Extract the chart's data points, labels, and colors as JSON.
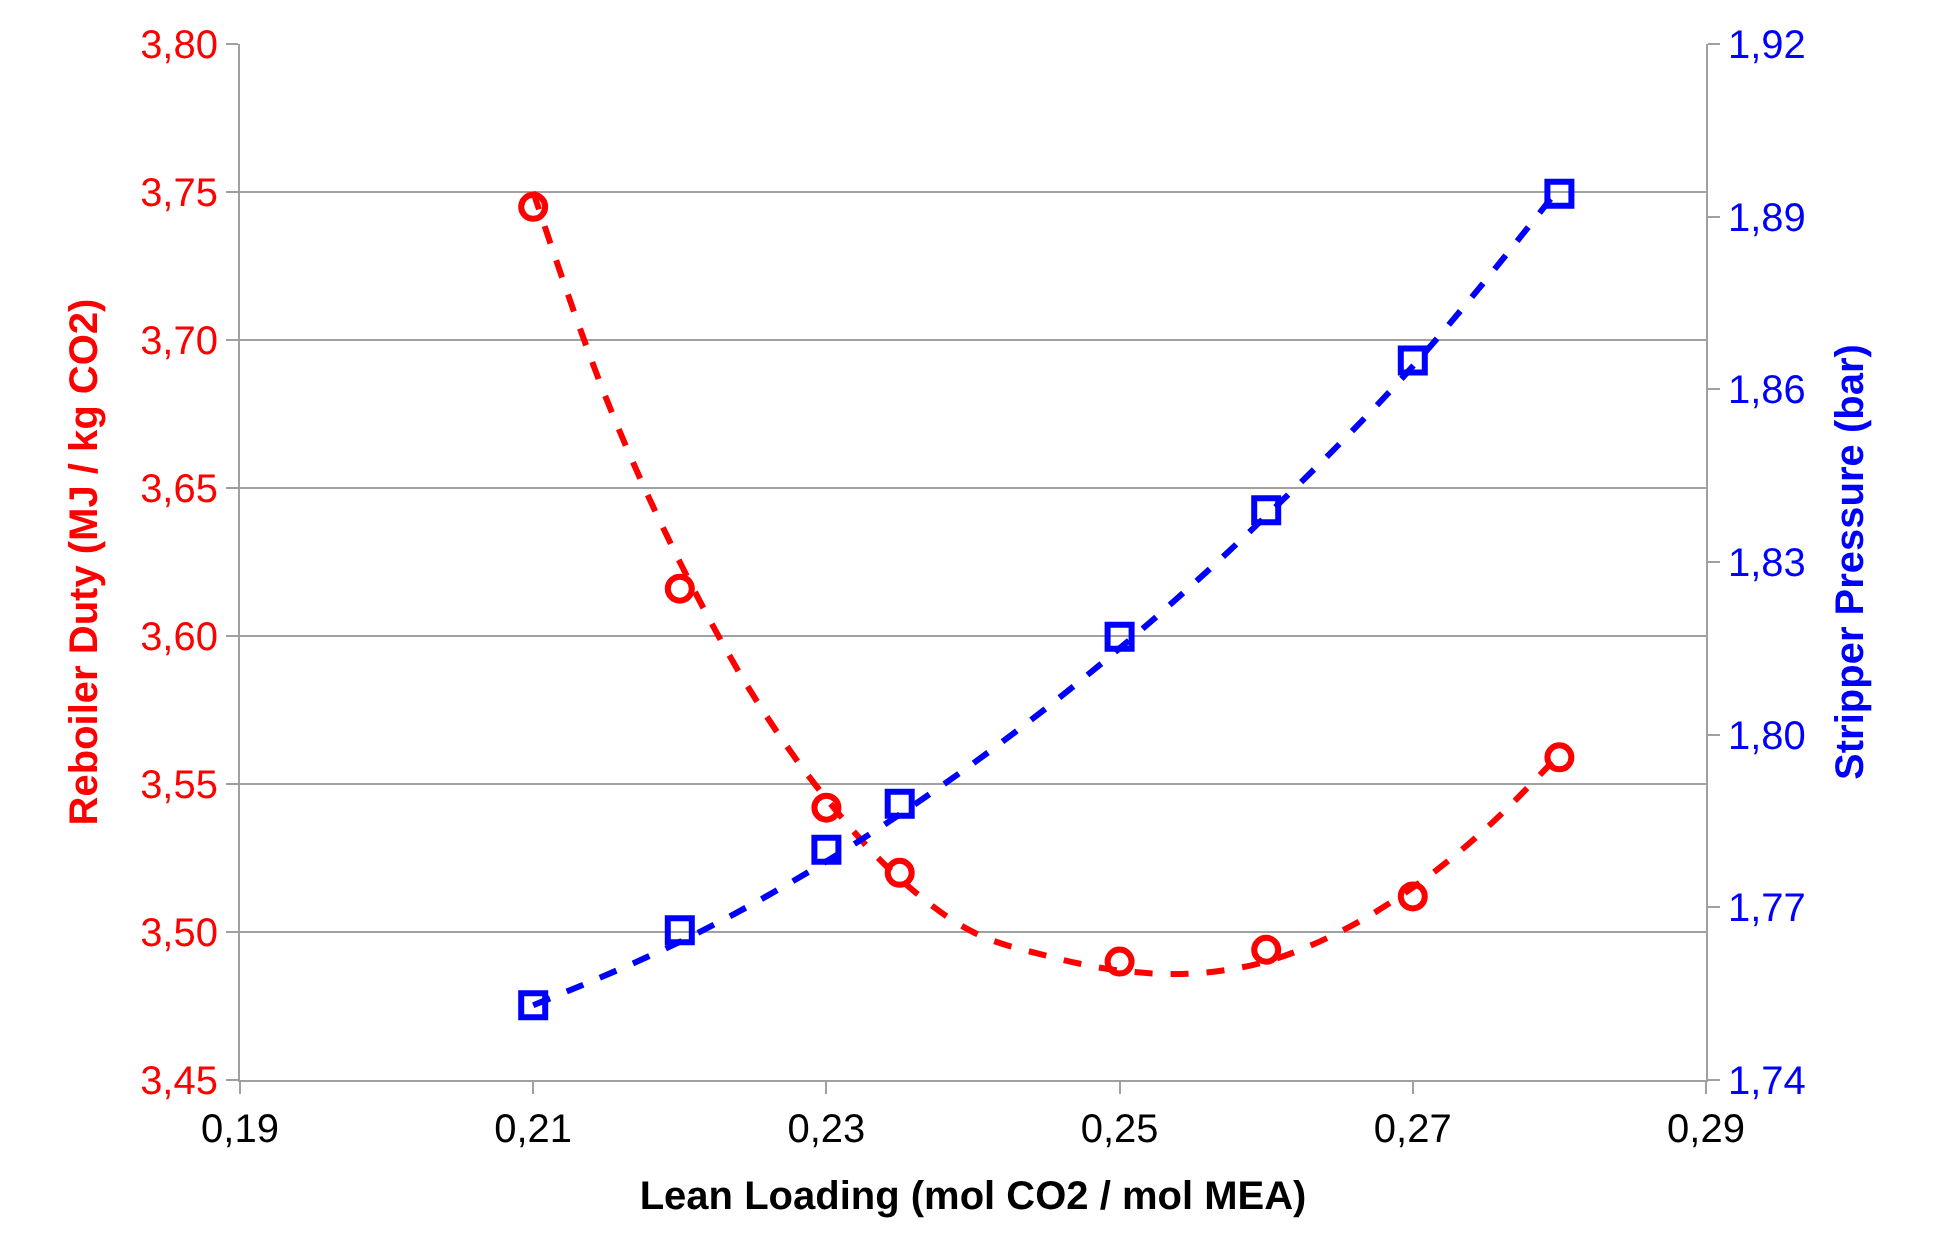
{
  "chart_data": {
    "type": "scatter",
    "xlabel": "Lean Loading (mol CO2 / mol MEA)",
    "ylabel": "Reboiler Duty (MJ / kg CO2)",
    "y2label": "Stripper Pressure (bar)",
    "xlim": [
      0.19,
      0.29
    ],
    "xticks": [
      {
        "value": 0.19,
        "label": "0,19"
      },
      {
        "value": 0.21,
        "label": "0,21"
      },
      {
        "value": 0.23,
        "label": "0,23"
      },
      {
        "value": 0.25,
        "label": "0,25"
      },
      {
        "value": 0.27,
        "label": "0,27"
      },
      {
        "value": 0.29,
        "label": "0,29"
      }
    ],
    "ylim": [
      3.45,
      3.8
    ],
    "yticks": [
      {
        "value": 3.45,
        "label": "3,45"
      },
      {
        "value": 3.5,
        "label": "3,50"
      },
      {
        "value": 3.55,
        "label": "3,55"
      },
      {
        "value": 3.6,
        "label": "3,60"
      },
      {
        "value": 3.65,
        "label": "3,65"
      },
      {
        "value": 3.7,
        "label": "3,70"
      },
      {
        "value": 3.75,
        "label": "3,75"
      },
      {
        "value": 3.8,
        "label": "3,80"
      }
    ],
    "y2lim": [
      1.74,
      1.92
    ],
    "y2ticks": [
      {
        "value": 1.74,
        "label": "1,74"
      },
      {
        "value": 1.77,
        "label": "1,77"
      },
      {
        "value": 1.8,
        "label": "1,80"
      },
      {
        "value": 1.83,
        "label": "1,83"
      },
      {
        "value": 1.86,
        "label": "1,86"
      },
      {
        "value": 1.89,
        "label": "1,89"
      },
      {
        "value": 1.92,
        "label": "1,92"
      }
    ],
    "grid": "y",
    "series": [
      {
        "type": "line",
        "color": "#ff0000",
        "line_style": "dashed",
        "x": [
          0.21,
          0.215,
          0.22,
          0.225,
          0.23,
          0.235,
          0.24,
          0.245,
          0.25,
          0.255,
          0.26,
          0.265,
          0.27,
          0.275,
          0.28
        ],
        "values": [
          3.75,
          3.68,
          3.625,
          3.58,
          3.545,
          3.518,
          3.5,
          3.492,
          3.487,
          3.486,
          3.49,
          3.5,
          3.515,
          3.535,
          3.56
        ]
      },
      {
        "type": "line",
        "axis": "y2",
        "color": "#0000ff",
        "line_style": "dashed",
        "x": [
          0.21,
          0.22,
          0.23,
          0.24,
          0.25,
          0.26,
          0.27,
          0.28
        ],
        "values": [
          1.753,
          1.764,
          1.778,
          1.795,
          1.815,
          1.838,
          1.864,
          1.895
        ]
      },
      {
        "color": "#ff0000",
        "marker": "circle",
        "x": [
          0.21,
          0.22,
          0.23,
          0.235,
          0.25,
          0.26,
          0.27,
          0.28
        ],
        "values": [
          3.745,
          3.616,
          3.542,
          3.52,
          3.49,
          3.494,
          3.512,
          3.559
        ]
      },
      {
        "axis": "y2",
        "color": "#0000ff",
        "marker": "square",
        "x": [
          0.21,
          0.22,
          0.23,
          0.235,
          0.25,
          0.26,
          0.27,
          0.28
        ],
        "values": [
          1.753,
          1.766,
          1.78,
          1.788,
          1.817,
          1.839,
          1.865,
          1.894
        ]
      }
    ]
  }
}
